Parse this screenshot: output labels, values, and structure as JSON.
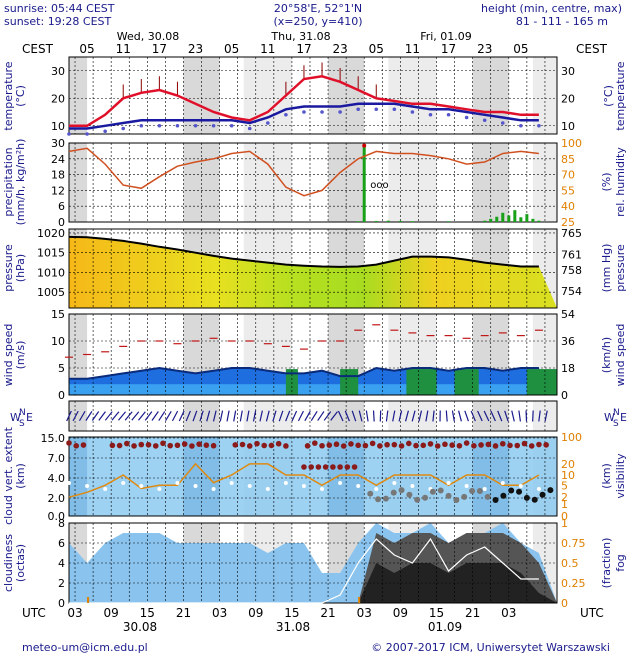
{
  "header": {
    "sunrise": "sunrise: 05:44 CEST",
    "sunset": "sunset: 19:28 CEST",
    "coords": "20°58'E, 52°1'N",
    "grid": "(x=250,  y=410)",
    "height_label": "height (min, centre, max)",
    "height_values": "81 - 111 - 165 m"
  },
  "top_axis": {
    "tz_left": "CEST",
    "tz_right": "CEST",
    "days": [
      "Wed, 30.08",
      "Thu, 31.08",
      "Fri, 01.09"
    ],
    "hours": [
      "05",
      "11",
      "17",
      "23",
      "05",
      "11",
      "17",
      "23",
      "05",
      "11",
      "17",
      "23",
      "05"
    ]
  },
  "bottom_axis": {
    "tz_left": "UTC",
    "tz_right": "UTC",
    "hours": [
      "03",
      "09",
      "15",
      "21",
      "03",
      "09",
      "15",
      "21",
      "03",
      "09",
      "15",
      "21",
      "03"
    ],
    "dates": [
      "30.08",
      "31.08",
      "01.09"
    ]
  },
  "footer": {
    "email": "meteo-um@icm.edu.pl",
    "copyright": "© 2007-2017 ICM, Uniwersytet Warszawski"
  },
  "colors": {
    "temp_line": "#e0102a",
    "dew_line": "#1a1aa0",
    "dew_dots": "#5555cc",
    "humidity": "#d05020",
    "precip": "#18a018",
    "pressure_line": "#000000",
    "wind_line": "#0a2a7a",
    "gust": "#c01818",
    "cloud_dots": "#8b1a1a",
    "visibility": "#e08a10",
    "fog": "#ffffff",
    "night_band": "#d8d8d8",
    "sky_blue": "#8ccaf0",
    "axis_blue": "#1a1a8c",
    "orange": "#e08000"
  },
  "chart_data": [
    {
      "name": "temperature",
      "type": "line",
      "ylabel_left": "temperature (°C)",
      "ylabel_right": "temperature (°C)",
      "ylim": [
        7,
        35
      ],
      "ticks": [
        10,
        20,
        30
      ],
      "x_hours": [
        0,
        3,
        6,
        9,
        12,
        15,
        18,
        21,
        24,
        27,
        30,
        33,
        36,
        39,
        42,
        45,
        48,
        51,
        54,
        57,
        60,
        63,
        66,
        69,
        72,
        75,
        78
      ],
      "series": [
        {
          "name": "temperature",
          "values": [
            10,
            10,
            14,
            20,
            22,
            23,
            21,
            18,
            15,
            13,
            12,
            15,
            21,
            27,
            28,
            26,
            23,
            20,
            19,
            18,
            18,
            17,
            16,
            15,
            15,
            14,
            14
          ]
        },
        {
          "name": "dew point",
          "values": [
            9,
            9,
            10,
            11,
            12,
            12,
            12,
            12,
            12,
            12,
            11,
            13,
            16,
            17,
            17,
            17,
            18,
            18,
            18,
            17,
            16,
            16,
            15,
            14,
            13,
            12,
            12
          ]
        }
      ]
    },
    {
      "name": "precipitation",
      "type": "line",
      "ylabel_left": "precipitation (mm/h, kg/m²h)",
      "ylabel_right": "rel. humidity (%)",
      "ylim": [
        0,
        30
      ],
      "ticks_left": [
        0,
        6,
        12,
        18,
        24,
        30
      ],
      "ticks_right": [
        25,
        40,
        55,
        70,
        85,
        100
      ],
      "humidity_x": [
        0,
        3,
        6,
        9,
        12,
        15,
        18,
        21,
        24,
        27,
        30,
        33,
        36,
        39,
        42,
        45,
        48,
        51,
        54,
        57,
        60,
        63,
        66,
        69,
        72,
        75,
        78
      ],
      "humidity_values": [
        92,
        95,
        80,
        60,
        57,
        68,
        78,
        82,
        85,
        90,
        92,
        80,
        58,
        50,
        55,
        72,
        85,
        92,
        90,
        90,
        88,
        85,
        80,
        82,
        90,
        92,
        90
      ],
      "precip_x": [
        48,
        49,
        51,
        53,
        55,
        57,
        63,
        69,
        70,
        71,
        72,
        73,
        74,
        75,
        76,
        77,
        78
      ],
      "precip_values": [
        0.3,
        29,
        0.4,
        0.5,
        0.4,
        0.3,
        0.3,
        0.5,
        1.2,
        2,
        3.5,
        2.5,
        4.5,
        1.8,
        3,
        1.2,
        0.5
      ],
      "annotation": "ooo"
    },
    {
      "name": "pressure",
      "type": "line",
      "ylabel_left": "pressure (hPa)",
      "ylabel_right": "pressure (mm Hg)",
      "ylim": [
        1001,
        1021
      ],
      "ticks_left": [
        1005,
        1010,
        1015,
        1020
      ],
      "ticks_right": [
        754,
        758,
        761,
        765
      ],
      "x_hours": [
        0,
        3,
        6,
        9,
        12,
        15,
        18,
        21,
        24,
        27,
        30,
        33,
        36,
        39,
        42,
        45,
        48,
        51,
        54,
        57,
        60,
        63,
        66,
        69,
        72,
        75,
        78
      ],
      "values": [
        1019,
        1018.9,
        1018.5,
        1018,
        1017.3,
        1016.5,
        1015.8,
        1015,
        1014.2,
        1013.5,
        1013,
        1012.5,
        1012,
        1011.7,
        1011.5,
        1011.4,
        1011.5,
        1012,
        1013,
        1014,
        1014,
        1013.8,
        1013.2,
        1012.5,
        1012,
        1011.5,
        1011.5
      ]
    },
    {
      "name": "wind",
      "type": "line",
      "ylabel_left": "wind speed (m/s)",
      "ylabel_right": "wind speed (km/h)",
      "ylim": [
        0,
        15
      ],
      "ticks_left": [
        0,
        5,
        10,
        15
      ],
      "ticks_right": [
        0,
        18,
        36,
        54
      ],
      "x_hours": [
        0,
        3,
        6,
        9,
        12,
        15,
        18,
        21,
        24,
        27,
        30,
        33,
        36,
        39,
        42,
        45,
        48,
        51,
        54,
        57,
        60,
        63,
        66,
        69,
        72,
        75,
        78
      ],
      "values": [
        3,
        3,
        3.5,
        4,
        4.5,
        5,
        4.5,
        4,
        4.5,
        5,
        5,
        4.5,
        4,
        4,
        4.5,
        3.5,
        3.5,
        5,
        4.5,
        5,
        5,
        4.5,
        5,
        5,
        4.5,
        5,
        5
      ],
      "gusts": [
        7,
        7.5,
        8,
        9,
        10,
        10,
        9.5,
        10,
        10.5,
        10,
        10,
        9.5,
        9,
        8.5,
        10,
        10,
        12,
        13,
        12,
        11.5,
        11,
        11,
        10.5,
        11,
        11.5,
        11,
        12
      ]
    },
    {
      "name": "cloud",
      "type": "scatter",
      "ylabel_left": "cloud vert. extent (km)",
      "ylabel_right": "visibility (km)",
      "ticks_left": [
        "0.0",
        "2.0",
        "4.0",
        "7.0",
        "15.0"
      ],
      "ticks_right": [
        0,
        1,
        2,
        5,
        10,
        20,
        100
      ],
      "visibility_x": [
        0,
        3,
        6,
        9,
        12,
        15,
        18,
        21,
        24,
        27,
        30,
        33,
        36,
        39,
        42,
        45,
        48,
        51,
        54,
        57,
        60,
        63,
        66,
        69,
        72,
        75,
        78
      ],
      "visibility_values": [
        2,
        3,
        5,
        10,
        4,
        5,
        5,
        20,
        6,
        10,
        20,
        20,
        10,
        10,
        5,
        10,
        10,
        5,
        10,
        10,
        10,
        5,
        10,
        10,
        5,
        5,
        10
      ]
    },
    {
      "name": "cloudiness",
      "type": "area",
      "ylabel_left": "cloudiness (octas)",
      "ylabel_right": "(fraction) fog",
      "ylim": [
        0,
        8
      ],
      "ticks_left": [
        0,
        2,
        4,
        6,
        8
      ],
      "ticks_right": [
        "0",
        "0.25",
        "0.5",
        "0.75",
        "1"
      ],
      "x_hours": [
        0,
        3,
        6,
        9,
        12,
        15,
        18,
        21,
        24,
        27,
        30,
        33,
        36,
        39,
        42,
        45,
        48,
        51,
        54,
        57,
        60,
        63,
        66,
        69,
        72,
        75,
        78
      ],
      "total": [
        6,
        4,
        6,
        7,
        7,
        7,
        6,
        6,
        6,
        6,
        6,
        5,
        6,
        6,
        3,
        3,
        6,
        8,
        7,
        7,
        8,
        6,
        7,
        7,
        8,
        6,
        5
      ],
      "high": [
        0,
        0,
        0,
        0,
        0,
        0,
        0,
        0,
        0,
        0,
        0,
        0,
        0,
        0,
        0,
        0,
        0,
        7,
        6,
        7,
        7,
        6,
        7,
        7,
        7,
        6,
        4
      ],
      "fog": [
        0,
        0,
        0,
        0,
        0,
        0,
        0,
        0,
        0,
        0,
        0,
        0,
        0,
        0,
        0,
        0.1,
        0.5,
        0.8,
        0.6,
        0.5,
        0.8,
        0.4,
        0.6,
        0.7,
        0.5,
        0.3,
        0.3
      ]
    }
  ]
}
